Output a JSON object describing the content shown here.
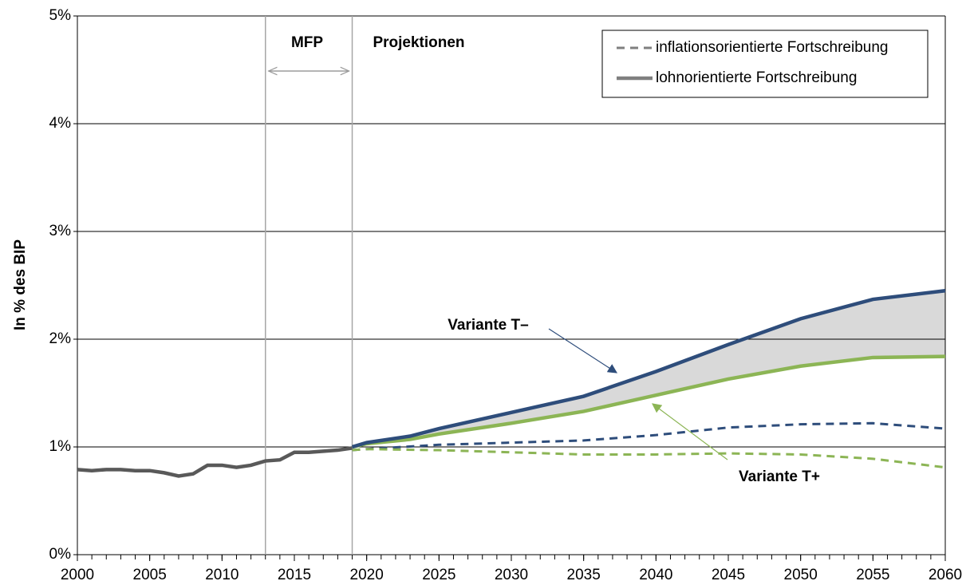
{
  "chart_data": {
    "type": "line",
    "y_label": "In % des BIP",
    "xlim": [
      2000,
      2060
    ],
    "xticks": [
      2000,
      2005,
      2010,
      2015,
      2020,
      2025,
      2030,
      2035,
      2040,
      2045,
      2050,
      2055,
      2060
    ],
    "ylim": [
      0,
      5
    ],
    "yticks": [
      {
        "value": 0,
        "label": "0%"
      },
      {
        "value": 1,
        "label": "1%"
      },
      {
        "value": 2,
        "label": "2%"
      },
      {
        "value": 3,
        "label": "3%"
      },
      {
        "value": 4,
        "label": "4%"
      },
      {
        "value": 5,
        "label": "5%"
      }
    ],
    "grid": true,
    "vlines": [
      2013,
      2019
    ],
    "annotations": [
      "MFP",
      "Projektionen",
      "Variante T–",
      "Variante T+"
    ],
    "legend": [
      {
        "label": "inflationsorientierte Fortschreibung",
        "dash": true,
        "color": "#7f7f7f"
      },
      {
        "label": "lohnorientierte Fortschreibung",
        "dash": false,
        "color": "#7f7f7f"
      }
    ],
    "series": [
      {
        "color": "#595959",
        "dash": false,
        "x": [
          2000,
          2001,
          2002,
          2003,
          2004,
          2005,
          2006,
          2007,
          2008,
          2009,
          2010,
          2011,
          2012,
          2013,
          2014,
          2015,
          2016,
          2017,
          2018,
          2019
        ],
        "values": [
          0.79,
          0.78,
          0.79,
          0.79,
          0.78,
          0.78,
          0.76,
          0.73,
          0.75,
          0.83,
          0.83,
          0.81,
          0.83,
          0.87,
          0.88,
          0.95,
          0.95,
          0.96,
          0.97,
          0.99
        ]
      },
      {
        "color": "#2e4d7b",
        "dash": false,
        "x": [
          2019,
          2020,
          2023,
          2025,
          2030,
          2035,
          2040,
          2045,
          2050,
          2055,
          2060
        ],
        "values": [
          1.0,
          1.04,
          1.1,
          1.17,
          1.32,
          1.47,
          1.7,
          1.95,
          2.19,
          2.37,
          2.45
        ]
      },
      {
        "color": "#8cb555",
        "dash": false,
        "x": [
          2019,
          2020,
          2023,
          2025,
          2030,
          2035,
          2040,
          2045,
          2050,
          2055,
          2060
        ],
        "values": [
          1.0,
          1.03,
          1.07,
          1.12,
          1.22,
          1.33,
          1.48,
          1.63,
          1.75,
          1.83,
          1.84
        ]
      },
      {
        "color": "#2e4d7b",
        "dash": true,
        "x": [
          2019,
          2020,
          2025,
          2030,
          2035,
          2040,
          2045,
          2050,
          2055,
          2060
        ],
        "values": [
          0.97,
          0.98,
          1.02,
          1.04,
          1.06,
          1.11,
          1.18,
          1.21,
          1.22,
          1.17
        ]
      },
      {
        "color": "#8cb555",
        "dash": true,
        "x": [
          2019,
          2020,
          2025,
          2030,
          2035,
          2040,
          2045,
          2050,
          2055,
          2060
        ],
        "values": [
          0.97,
          0.98,
          0.97,
          0.95,
          0.93,
          0.93,
          0.94,
          0.93,
          0.89,
          0.81
        ]
      }
    ]
  }
}
